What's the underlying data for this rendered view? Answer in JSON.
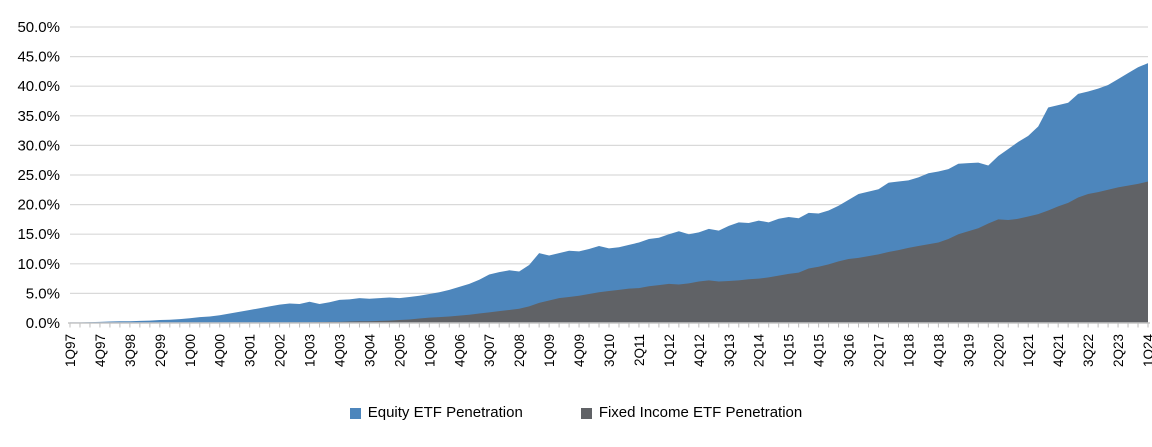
{
  "chart_data": {
    "type": "area",
    "title": "",
    "xlabel": "",
    "ylabel": "",
    "x_unit": "quarter",
    "x_range": [
      "1Q97",
      "1Q24"
    ],
    "points_per_series": 109,
    "x_tick_labels": [
      "1Q97",
      "4Q97",
      "3Q98",
      "2Q99",
      "1Q00",
      "4Q00",
      "3Q01",
      "2Q02",
      "1Q03",
      "4Q03",
      "3Q04",
      "2Q05",
      "1Q06",
      "4Q06",
      "3Q07",
      "2Q08",
      "1Q09",
      "4Q09",
      "3Q10",
      "2Q11",
      "1Q12",
      "4Q12",
      "3Q13",
      "2Q14",
      "1Q15",
      "4Q15",
      "3Q16",
      "2Q17",
      "1Q18",
      "4Q18",
      "3Q19",
      "2Q20",
      "1Q21",
      "4Q21",
      "3Q22",
      "2Q23",
      "1Q24"
    ],
    "x_label_every_n_points": 3,
    "y_tick_labels": [
      "0.0%",
      "5.0%",
      "10.0%",
      "15.0%",
      "20.0%",
      "25.0%",
      "30.0%",
      "35.0%",
      "40.0%",
      "45.0%",
      "50.0%"
    ],
    "ylim": [
      0,
      50
    ],
    "grid": "horizontal",
    "legend_position": "bottom-center",
    "overlap_mode": "overlapping-areas",
    "series": [
      {
        "name": "Equity ETF Penetration",
        "color": "#4d86bc",
        "values": [
          0.1,
          0.1,
          0.15,
          0.2,
          0.25,
          0.3,
          0.3,
          0.35,
          0.4,
          0.5,
          0.55,
          0.65,
          0.8,
          1.0,
          1.1,
          1.3,
          1.6,
          1.9,
          2.2,
          2.5,
          2.8,
          3.1,
          3.3,
          3.2,
          3.6,
          3.2,
          3.5,
          3.9,
          4.0,
          4.2,
          4.1,
          4.2,
          4.3,
          4.2,
          4.4,
          4.6,
          4.9,
          5.2,
          5.6,
          6.1,
          6.6,
          7.3,
          8.2,
          8.6,
          8.9,
          8.7,
          9.8,
          11.8,
          11.4,
          11.8,
          12.2,
          12.1,
          12.5,
          13.0,
          12.6,
          12.8,
          13.2,
          13.6,
          14.2,
          14.4,
          15.0,
          15.5,
          15.0,
          15.3,
          15.9,
          15.6,
          16.4,
          17.0,
          16.9,
          17.3,
          17.0,
          17.6,
          17.9,
          17.7,
          18.6,
          18.5,
          19.0,
          19.8,
          20.8,
          21.8,
          22.2,
          22.6,
          23.7,
          23.9,
          24.1,
          24.6,
          25.3,
          25.6,
          26.0,
          26.9,
          27.0,
          27.1,
          26.6,
          28.2,
          29.4,
          30.6,
          31.6,
          33.2,
          36.4,
          36.8,
          37.2,
          38.7,
          39.1,
          39.6,
          40.2,
          41.2,
          42.2,
          43.2,
          43.9
        ]
      },
      {
        "name": "Fixed Income ETF Penetration",
        "color": "#606266",
        "values": [
          0,
          0,
          0,
          0,
          0,
          0,
          0,
          0,
          0,
          0,
          0,
          0,
          0,
          0,
          0,
          0,
          0,
          0,
          0,
          0,
          0,
          0,
          0.1,
          0.1,
          0.1,
          0.15,
          0.2,
          0.2,
          0.25,
          0.3,
          0.3,
          0.35,
          0.4,
          0.5,
          0.6,
          0.75,
          0.9,
          1.0,
          1.1,
          1.25,
          1.4,
          1.6,
          1.8,
          2.0,
          2.2,
          2.4,
          2.8,
          3.4,
          3.8,
          4.2,
          4.4,
          4.6,
          4.9,
          5.2,
          5.4,
          5.6,
          5.8,
          5.9,
          6.2,
          6.4,
          6.6,
          6.5,
          6.7,
          7.0,
          7.2,
          7.0,
          7.1,
          7.2,
          7.4,
          7.5,
          7.7,
          8.0,
          8.3,
          8.5,
          9.2,
          9.5,
          9.9,
          10.4,
          10.8,
          11.0,
          11.3,
          11.6,
          12.0,
          12.3,
          12.7,
          13.0,
          13.3,
          13.6,
          14.2,
          15.0,
          15.5,
          16.0,
          16.8,
          17.5,
          17.4,
          17.6,
          18.0,
          18.4,
          19.0,
          19.7,
          20.3,
          21.2,
          21.8,
          22.1,
          22.5,
          22.9,
          23.2,
          23.5,
          23.9
        ]
      }
    ],
    "colors": {
      "gridline": "#d9d9d9",
      "axis_line": "#c6c6c6",
      "tick": "#bfbfbf",
      "axis_text": "#000000"
    }
  }
}
